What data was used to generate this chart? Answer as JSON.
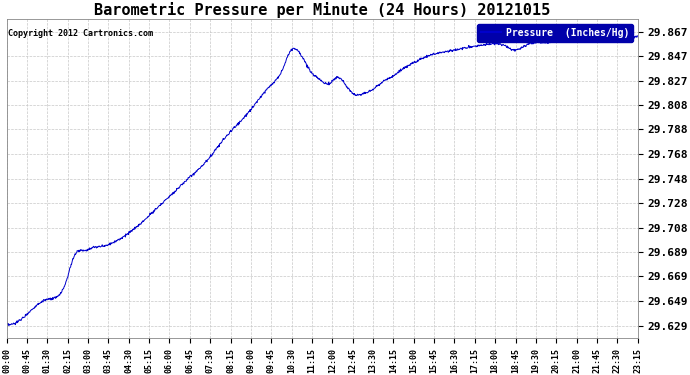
{
  "title": "Barometric Pressure per Minute (24 Hours) 20121015",
  "copyright": "Copyright 2012 Cartronics.com",
  "legend_label": "Pressure  (Inches/Hg)",
  "yticks": [
    29.629,
    29.649,
    29.669,
    29.689,
    29.708,
    29.728,
    29.748,
    29.768,
    29.788,
    29.808,
    29.827,
    29.847,
    29.867
  ],
  "xtick_labels": [
    "00:00",
    "00:45",
    "01:30",
    "02:15",
    "03:00",
    "03:45",
    "04:30",
    "05:15",
    "06:00",
    "06:45",
    "07:30",
    "08:15",
    "09:00",
    "09:45",
    "10:30",
    "11:15",
    "12:00",
    "12:45",
    "13:30",
    "14:15",
    "15:00",
    "15:45",
    "16:30",
    "17:15",
    "18:00",
    "18:45",
    "19:30",
    "20:15",
    "21:00",
    "21:45",
    "22:30",
    "23:15"
  ],
  "ylim": [
    29.619,
    29.877
  ],
  "line_color": "#0000cc",
  "bg_color": "#ffffff",
  "grid_color": "#c8c8c8",
  "title_fontsize": 11,
  "title_fontweight": "bold",
  "legend_bg": "#0000aa",
  "legend_text_color": "#ffffff",
  "control_x": [
    0,
    45,
    90,
    135,
    155,
    175,
    195,
    210,
    225,
    240,
    270,
    300,
    330,
    360,
    390,
    420,
    450,
    480,
    510,
    540,
    570,
    600,
    630,
    645,
    660,
    675,
    695,
    715,
    735,
    755,
    775,
    795,
    815,
    835,
    855,
    870,
    885,
    900,
    930,
    960,
    990,
    1020,
    1050,
    1080,
    1110,
    1140,
    1155,
    1170,
    1185,
    1200,
    1230,
    1260,
    1290,
    1320,
    1350,
    1380,
    1410,
    1439
  ],
  "control_y": [
    29.63,
    29.638,
    29.65,
    29.664,
    29.686,
    29.69,
    29.692,
    29.693,
    29.694,
    29.696,
    29.702,
    29.71,
    29.72,
    29.73,
    29.74,
    29.75,
    29.76,
    29.773,
    29.786,
    29.797,
    29.81,
    29.823,
    29.837,
    29.85,
    29.853,
    29.846,
    29.834,
    29.828,
    29.825,
    29.83,
    29.823,
    29.816,
    29.817,
    29.82,
    29.826,
    29.829,
    29.832,
    29.836,
    29.842,
    29.847,
    29.85,
    29.852,
    29.854,
    29.856,
    29.857,
    29.855,
    29.852,
    29.853,
    29.856,
    29.858,
    29.858,
    29.86,
    29.86,
    29.862,
    29.86,
    29.862,
    29.863,
    29.863
  ]
}
